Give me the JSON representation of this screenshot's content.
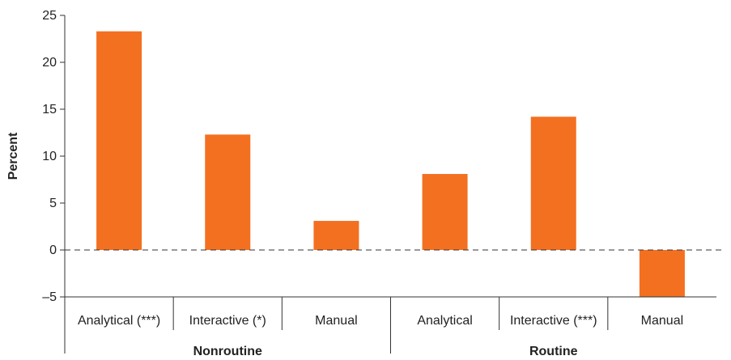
{
  "chart_data": {
    "type": "bar",
    "ylabel": "Percent",
    "ylim": [
      -5,
      25
    ],
    "yticks": [
      -5,
      0,
      5,
      10,
      15,
      20,
      25
    ],
    "ytick_labels": [
      "–5",
      "0",
      "5",
      "10",
      "15",
      "20",
      "25"
    ],
    "categories": [
      "Analytical (***)",
      "Interactive (*)",
      "Manual",
      "Analytical",
      "Interactive (***)",
      "Manual"
    ],
    "values": [
      23.3,
      12.3,
      3.1,
      8.1,
      14.2,
      -5.0
    ],
    "groups": [
      {
        "label": "Nonroutine",
        "count": 3
      },
      {
        "label": "Routine",
        "count": 3
      }
    ],
    "bar_color": "#f37021",
    "zero_line": "dashed",
    "grid": false,
    "legend": "none"
  }
}
